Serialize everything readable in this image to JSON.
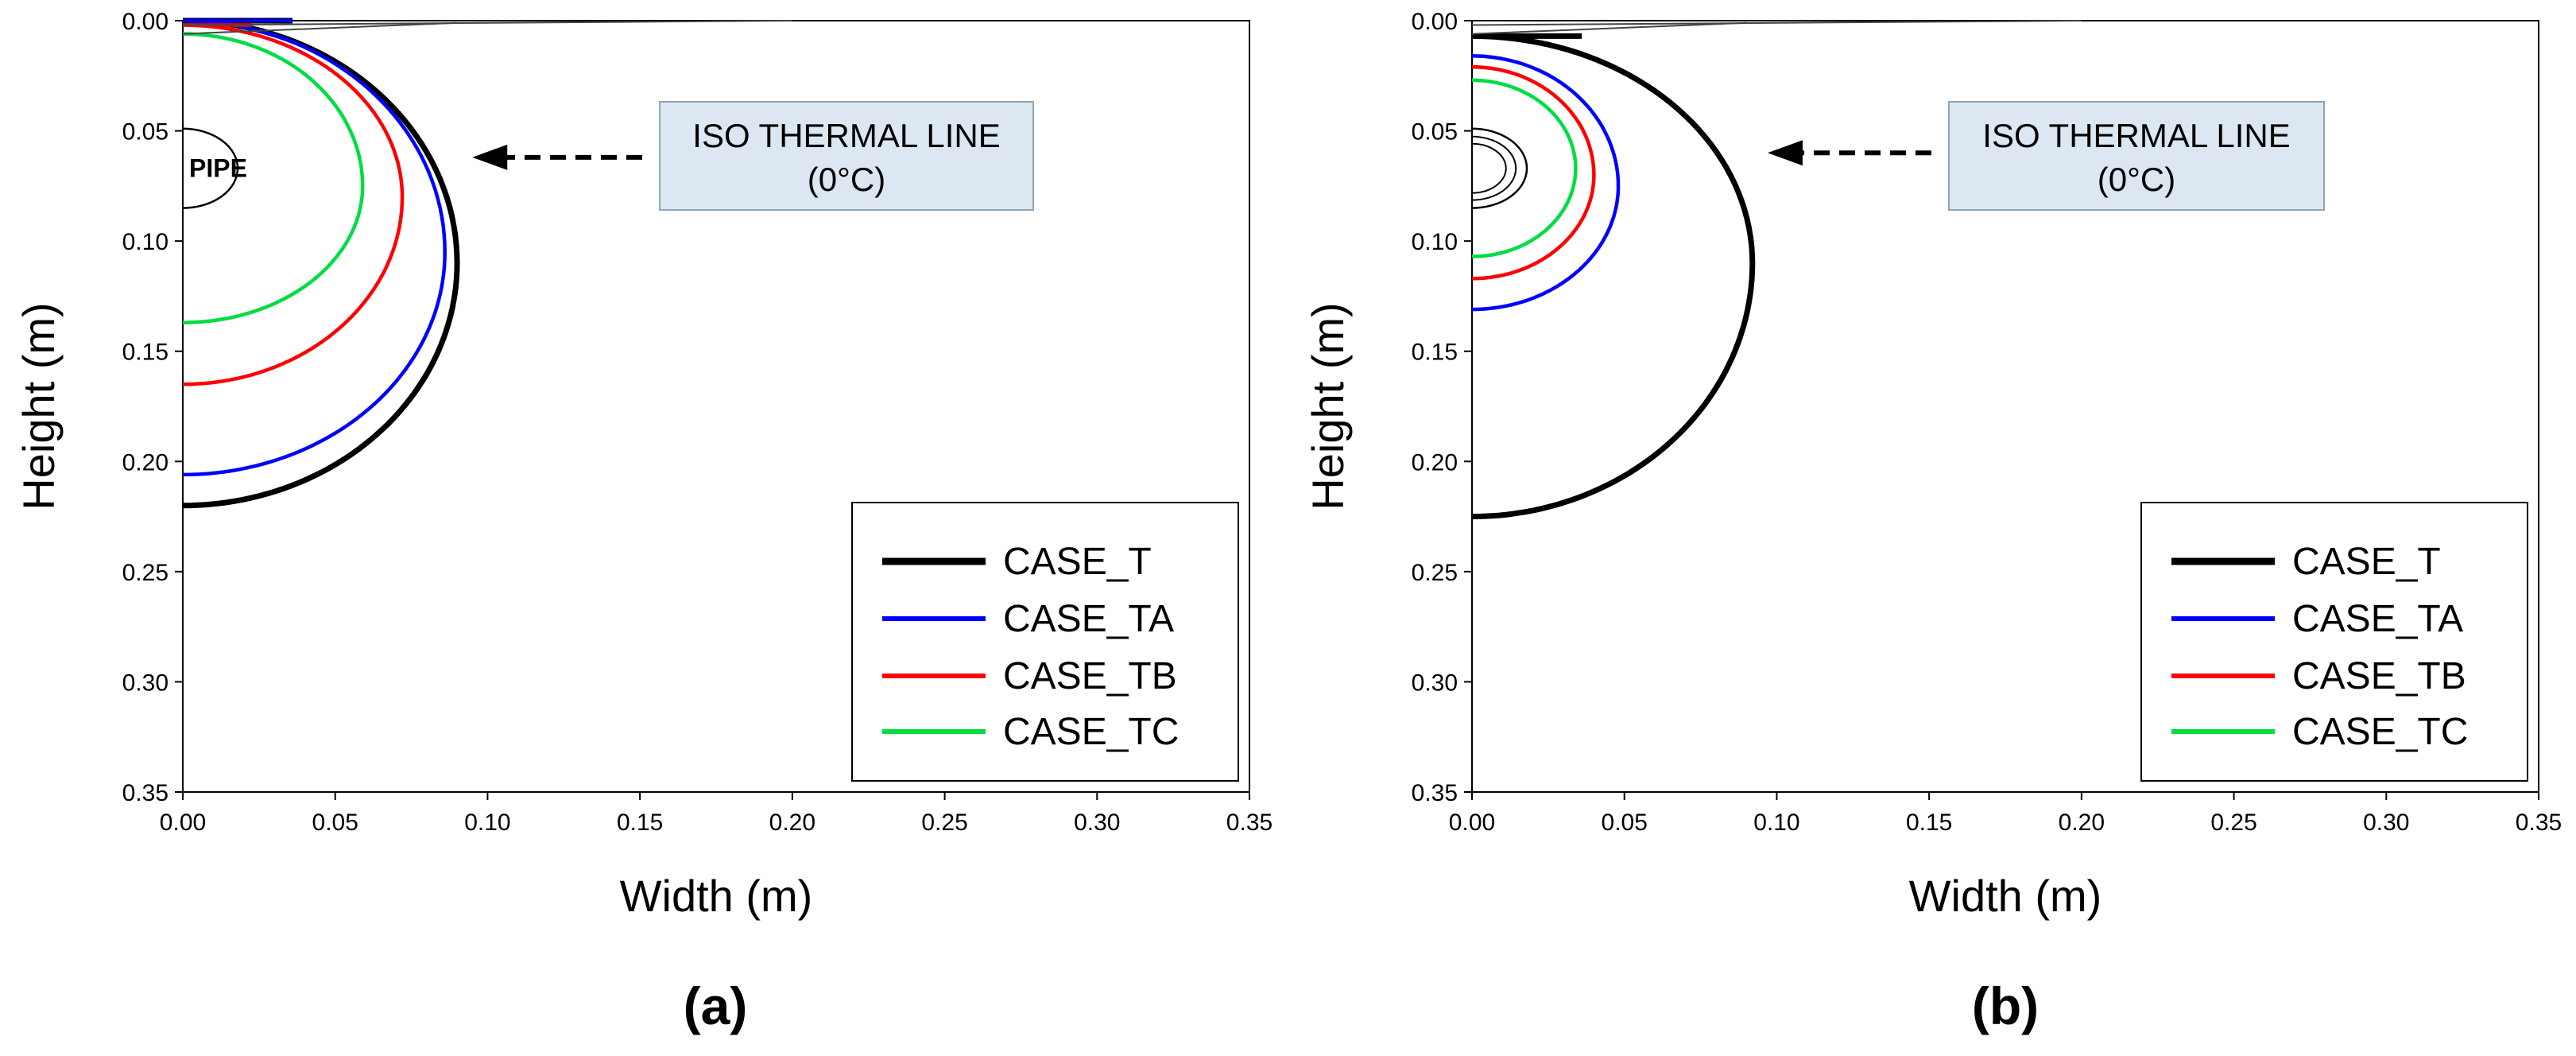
{
  "chart_data": [
    {
      "type": "line",
      "panel_label": "(a)",
      "xlabel": "Width (m)",
      "ylabel": "Height (m)",
      "xlim": [
        0,
        0.35
      ],
      "ylim": [
        0,
        0.35
      ],
      "y_inverted": true,
      "xticks": [
        "0.00",
        "0.05",
        "0.10",
        "0.15",
        "0.20",
        "0.25",
        "0.30",
        "0.35"
      ],
      "yticks": [
        "0.00",
        "0.05",
        "0.10",
        "0.15",
        "0.20",
        "0.25",
        "0.30",
        "0.35"
      ],
      "legend_position": "bottom-right",
      "annotation": {
        "line1": "ISO THERMAL LINE",
        "line2": "(0°C)",
        "arrow_target": [
          0.095,
          0.062
        ]
      },
      "pipe": {
        "label": "PIPE",
        "center_y": 0.067,
        "radius": 0.018
      },
      "series": [
        {
          "name": "CASE_T",
          "color": "#000000",
          "top": 0.0,
          "bottom": 0.22,
          "max_width": 0.09,
          "y_at_max": 0.11,
          "top_x": 0.04
        },
        {
          "name": "CASE_TA",
          "color": "#0000ff",
          "top": 0.0,
          "bottom": 0.206,
          "max_width": 0.086,
          "y_at_max": 0.105,
          "top_x": 0.04
        },
        {
          "name": "CASE_TB",
          "color": "#ff0000",
          "top": 0.002,
          "bottom": 0.165,
          "max_width": 0.072,
          "y_at_max": 0.08,
          "top_x": 0.025
        },
        {
          "name": "CASE_TC",
          "color": "#00dd44",
          "top": 0.006,
          "bottom": 0.137,
          "max_width": 0.059,
          "y_at_max": 0.075,
          "top_x": 0.0
        }
      ]
    },
    {
      "type": "line",
      "panel_label": "(b)",
      "xlabel": "Width (m)",
      "ylabel": "Height (m)",
      "xlim": [
        0,
        0.35
      ],
      "ylim": [
        0,
        0.35
      ],
      "y_inverted": true,
      "xticks": [
        "0.00",
        "0.05",
        "0.10",
        "0.15",
        "0.20",
        "0.25",
        "0.30",
        "0.35"
      ],
      "yticks": [
        "0.00",
        "0.05",
        "0.10",
        "0.15",
        "0.20",
        "0.25",
        "0.30",
        "0.35"
      ],
      "legend_position": "bottom-right",
      "annotation": {
        "line1": "ISO THERMAL LINE",
        "line2": "(0°C)",
        "arrow_target": [
          0.097,
          0.06
        ]
      },
      "pipe": {
        "label": "",
        "center_y": 0.067,
        "radius": 0.018
      },
      "series": [
        {
          "name": "CASE_T",
          "color": "#000000",
          "top": 0.007,
          "bottom": 0.225,
          "max_width": 0.092,
          "y_at_max": 0.11,
          "top_x": 0.04
        },
        {
          "name": "CASE_TA",
          "color": "#0000ff",
          "top": 0.016,
          "bottom": 0.131,
          "max_width": 0.048,
          "y_at_max": 0.075,
          "top_x": 0.0
        },
        {
          "name": "CASE_TB",
          "color": "#ff0000",
          "top": 0.021,
          "bottom": 0.117,
          "max_width": 0.04,
          "y_at_max": 0.07,
          "top_x": 0.0
        },
        {
          "name": "CASE_TC",
          "color": "#00dd44",
          "top": 0.027,
          "bottom": 0.107,
          "max_width": 0.034,
          "y_at_max": 0.067,
          "top_x": 0.0
        }
      ]
    }
  ]
}
